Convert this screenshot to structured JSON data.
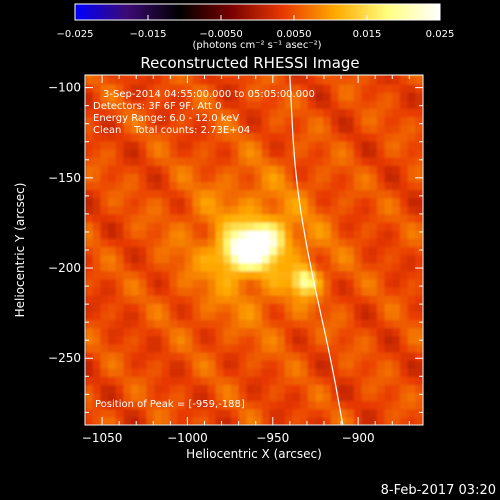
{
  "chart_data": {
    "type": "heatmap",
    "title": "Reconstructed RHESSI Image",
    "xlabel": "Heliocentric X (arcsec)",
    "ylabel": "Heliocentric Y (arcsec)",
    "xlim": [
      -1060,
      -862
    ],
    "ylim": [
      -287,
      -93
    ],
    "xticks": [
      -1050,
      -1000,
      -950,
      -900
    ],
    "xtick_labels": [
      "−1050",
      "−1000",
      "−950",
      "−900"
    ],
    "yticks": [
      -100,
      -150,
      -200,
      -250
    ],
    "ytick_labels": [
      "−100",
      "−150",
      "−200",
      "−250"
    ],
    "colorbar": {
      "range": [
        -0.025,
        0.025
      ],
      "ticks": [
        -0.025,
        -0.015,
        -0.005,
        0.005,
        0.015,
        0.025
      ],
      "tick_labels": [
        "−0.025",
        "−0.015",
        "−0.0050",
        "0.0050",
        "0.015",
        "0.025"
      ],
      "unit_label": "(photons cm⁻² s⁻¹ asec⁻²)",
      "colors": [
        "#0000ff",
        "#3b0a73",
        "#000000",
        "#7a0000",
        "#e83a00",
        "#ffaa00",
        "#ffff80",
        "#ffffff"
      ]
    },
    "sources": [
      {
        "name": "main",
        "x": -962,
        "y": -188,
        "peak": 0.025
      },
      {
        "name": "secondary",
        "x": -931,
        "y": -207,
        "peak": 0.014
      }
    ],
    "limb_arc": [
      [
        -940,
        -93
      ],
      [
        -937,
        -150
      ],
      [
        -928,
        -200
      ],
      [
        -916,
        -250
      ],
      [
        -909,
        -287
      ]
    ],
    "annotations": [
      "3-Sep-2014 04:55:00.000 to 05:05:00.000",
      "Detectors: 3F 6F 9F, Att 0",
      "Energy Range: 6.0 - 12.0 keV",
      "Clean    Total counts: 2.73E+04",
      "Position of Peak = [-959,-188]"
    ]
  },
  "footer": {
    "timestamp": "8-Feb-2017 03:20"
  }
}
